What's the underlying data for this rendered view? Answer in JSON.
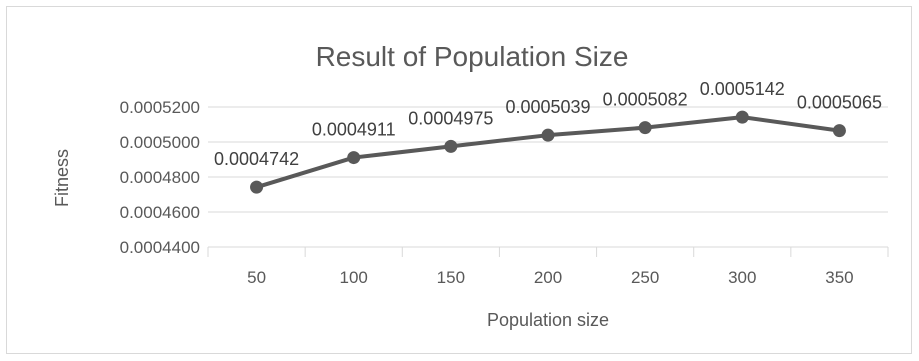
{
  "chart_data": {
    "type": "line",
    "title": "Result of Population Size",
    "xlabel": "Population size",
    "ylabel": "Fitness",
    "categories": [
      "50",
      "100",
      "150",
      "200",
      "250",
      "300",
      "350"
    ],
    "y_ticks": [
      "0.0004400",
      "0.0004600",
      "0.0004800",
      "0.0005000",
      "0.0005200"
    ],
    "ylim": [
      0.00044,
      0.00052
    ],
    "grid": true,
    "legend": "none",
    "series": [
      {
        "values": [
          0.0004742,
          0.0004911,
          0.0004975,
          0.0005039,
          0.0005082,
          0.0005142,
          0.0005065
        ],
        "labels": [
          "0.0004742",
          "0.0004911",
          "0.0004975",
          "0.0005039",
          "0.0005082",
          "0.0005142",
          "0.0005065"
        ]
      }
    ],
    "line_color": "#595959"
  }
}
